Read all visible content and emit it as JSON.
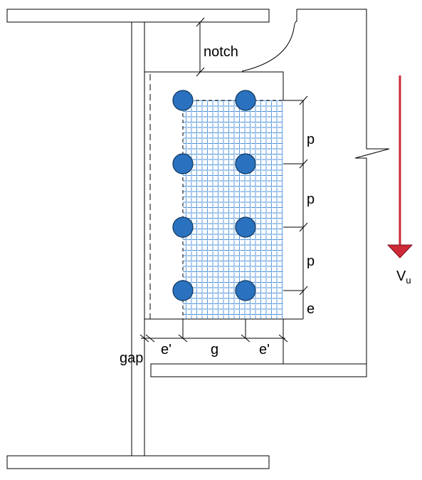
{
  "labels": {
    "notch": "notch",
    "pitch": "p",
    "edge": "e",
    "gap": "gap",
    "edge_transverse": "e'",
    "gage": "g",
    "force_main": "V",
    "force_sub": "u"
  },
  "colors": {
    "bolt_fill": "#2a72bf",
    "bolt_stroke": "#10375e",
    "hatch": "#4a90d9",
    "arrow": "#cc2a36"
  },
  "bolts": {
    "rows": 4,
    "columns": 2
  }
}
